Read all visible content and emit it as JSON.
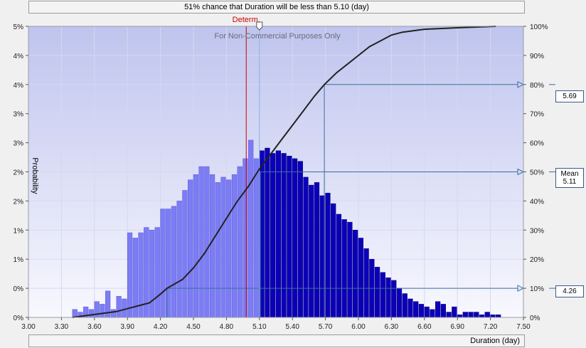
{
  "header": {
    "label": "51% chance that Duration will be less than 5.10 (day)"
  },
  "footer": {
    "label": "Duration (day)"
  },
  "determ_label": "Determ.",
  "watermark": "For Non-Commercial Purposes Only",
  "callouts": {
    "p80": {
      "value": "5.69"
    },
    "mean": {
      "label": "Mean",
      "value": "5.11"
    },
    "p10": {
      "value": "4.26"
    }
  },
  "chart_data": {
    "type": "bar",
    "ylabel": "Probability",
    "x_ticks": [
      "3.00",
      "3.30",
      "3.60",
      "3.90",
      "4.20",
      "4.50",
      "4.80",
      "5.10",
      "5.40",
      "5.70",
      "6.00",
      "6.30",
      "6.60",
      "6.90",
      "7.20",
      "7.50"
    ],
    "left_ticks": [
      "0%",
      "0%",
      "1%",
      "1%",
      "2%",
      "2%",
      "3%",
      "3%",
      "4%",
      "4%",
      "5%"
    ],
    "right_ticks": [
      "0%",
      "10%",
      "20%",
      "30%",
      "40%",
      "50%",
      "60%",
      "70%",
      "80%",
      "90%",
      "100%"
    ],
    "xlim": [
      3.0,
      7.5
    ],
    "ylim_left": [
      0,
      5.5
    ],
    "ylim_right": [
      0,
      100
    ],
    "bin_width": 0.05,
    "threshold": 5.1,
    "determ": 4.98,
    "mean": 5.11,
    "p10": 4.26,
    "p50": 5.11,
    "p80": 5.69,
    "bins": [
      {
        "x": 3.4,
        "y": 0.15
      },
      {
        "x": 3.45,
        "y": 0.1
      },
      {
        "x": 3.5,
        "y": 0.2
      },
      {
        "x": 3.55,
        "y": 0.15
      },
      {
        "x": 3.6,
        "y": 0.3
      },
      {
        "x": 3.65,
        "y": 0.25
      },
      {
        "x": 3.7,
        "y": 0.5
      },
      {
        "x": 3.75,
        "y": 0.15
      },
      {
        "x": 3.8,
        "y": 0.4
      },
      {
        "x": 3.85,
        "y": 0.35
      },
      {
        "x": 3.9,
        "y": 1.6
      },
      {
        "x": 3.95,
        "y": 1.5
      },
      {
        "x": 4.0,
        "y": 1.6
      },
      {
        "x": 4.05,
        "y": 1.7
      },
      {
        "x": 4.1,
        "y": 1.65
      },
      {
        "x": 4.15,
        "y": 1.7
      },
      {
        "x": 4.2,
        "y": 2.05
      },
      {
        "x": 4.25,
        "y": 2.05
      },
      {
        "x": 4.3,
        "y": 2.1
      },
      {
        "x": 4.35,
        "y": 2.2
      },
      {
        "x": 4.4,
        "y": 2.4
      },
      {
        "x": 4.45,
        "y": 2.6
      },
      {
        "x": 4.5,
        "y": 2.7
      },
      {
        "x": 4.55,
        "y": 2.85
      },
      {
        "x": 4.6,
        "y": 2.85
      },
      {
        "x": 4.65,
        "y": 2.7
      },
      {
        "x": 4.7,
        "y": 2.55
      },
      {
        "x": 4.75,
        "y": 2.65
      },
      {
        "x": 4.8,
        "y": 2.6
      },
      {
        "x": 4.85,
        "y": 2.7
      },
      {
        "x": 4.9,
        "y": 2.85
      },
      {
        "x": 4.95,
        "y": 3.0
      },
      {
        "x": 5.0,
        "y": 3.35
      },
      {
        "x": 5.05,
        "y": 3.0
      },
      {
        "x": 5.1,
        "y": 3.15
      },
      {
        "x": 5.15,
        "y": 3.2
      },
      {
        "x": 5.2,
        "y": 3.1
      },
      {
        "x": 5.25,
        "y": 3.15
      },
      {
        "x": 5.3,
        "y": 3.1
      },
      {
        "x": 5.35,
        "y": 3.05
      },
      {
        "x": 5.4,
        "y": 3.0
      },
      {
        "x": 5.45,
        "y": 2.95
      },
      {
        "x": 5.5,
        "y": 2.65
      },
      {
        "x": 5.55,
        "y": 2.5
      },
      {
        "x": 5.6,
        "y": 2.55
      },
      {
        "x": 5.65,
        "y": 2.3
      },
      {
        "x": 5.7,
        "y": 2.35
      },
      {
        "x": 5.75,
        "y": 2.15
      },
      {
        "x": 5.8,
        "y": 1.95
      },
      {
        "x": 5.85,
        "y": 1.85
      },
      {
        "x": 5.9,
        "y": 1.8
      },
      {
        "x": 5.95,
        "y": 1.65
      },
      {
        "x": 6.0,
        "y": 1.5
      },
      {
        "x": 6.05,
        "y": 1.3
      },
      {
        "x": 6.1,
        "y": 1.1
      },
      {
        "x": 6.15,
        "y": 0.95
      },
      {
        "x": 6.2,
        "y": 0.85
      },
      {
        "x": 6.25,
        "y": 0.75
      },
      {
        "x": 6.3,
        "y": 0.7
      },
      {
        "x": 6.35,
        "y": 0.55
      },
      {
        "x": 6.4,
        "y": 0.45
      },
      {
        "x": 6.45,
        "y": 0.35
      },
      {
        "x": 6.5,
        "y": 0.3
      },
      {
        "x": 6.55,
        "y": 0.25
      },
      {
        "x": 6.6,
        "y": 0.2
      },
      {
        "x": 6.65,
        "y": 0.15
      },
      {
        "x": 6.7,
        "y": 0.3
      },
      {
        "x": 6.75,
        "y": 0.25
      },
      {
        "x": 6.8,
        "y": 0.1
      },
      {
        "x": 6.85,
        "y": 0.2
      },
      {
        "x": 6.9,
        "y": 0.05
      },
      {
        "x": 6.95,
        "y": 0.1
      },
      {
        "x": 7.0,
        "y": 0.1
      },
      {
        "x": 7.05,
        "y": 0.1
      },
      {
        "x": 7.1,
        "y": 0.05
      },
      {
        "x": 7.15,
        "y": 0.1
      },
      {
        "x": 7.2,
        "y": 0.05
      },
      {
        "x": 7.25,
        "y": 0.05
      }
    ],
    "cdf": [
      {
        "x": 3.4,
        "y": 0
      },
      {
        "x": 3.6,
        "y": 1
      },
      {
        "x": 3.8,
        "y": 2
      },
      {
        "x": 3.9,
        "y": 3
      },
      {
        "x": 4.0,
        "y": 4
      },
      {
        "x": 4.1,
        "y": 5
      },
      {
        "x": 4.2,
        "y": 8
      },
      {
        "x": 4.26,
        "y": 10
      },
      {
        "x": 4.4,
        "y": 13
      },
      {
        "x": 4.5,
        "y": 17
      },
      {
        "x": 4.6,
        "y": 22
      },
      {
        "x": 4.7,
        "y": 28
      },
      {
        "x": 4.8,
        "y": 34
      },
      {
        "x": 4.9,
        "y": 40
      },
      {
        "x": 5.0,
        "y": 45
      },
      {
        "x": 5.1,
        "y": 51
      },
      {
        "x": 5.2,
        "y": 56
      },
      {
        "x": 5.3,
        "y": 61
      },
      {
        "x": 5.4,
        "y": 66
      },
      {
        "x": 5.5,
        "y": 71
      },
      {
        "x": 5.6,
        "y": 76
      },
      {
        "x": 5.69,
        "y": 80
      },
      {
        "x": 5.8,
        "y": 84
      },
      {
        "x": 5.9,
        "y": 87
      },
      {
        "x": 6.0,
        "y": 90
      },
      {
        "x": 6.1,
        "y": 93
      },
      {
        "x": 6.2,
        "y": 95
      },
      {
        "x": 6.3,
        "y": 97
      },
      {
        "x": 6.4,
        "y": 98
      },
      {
        "x": 6.6,
        "y": 99
      },
      {
        "x": 6.9,
        "y": 99.5
      },
      {
        "x": 7.25,
        "y": 100
      }
    ],
    "colors": {
      "bar_below": "#7c7cf4",
      "bar_above": "#0b00b8",
      "cdf": "#222222",
      "determ": "#cc0000",
      "threshold": "#7fb6e0",
      "guide": "#3a6f9e"
    }
  }
}
